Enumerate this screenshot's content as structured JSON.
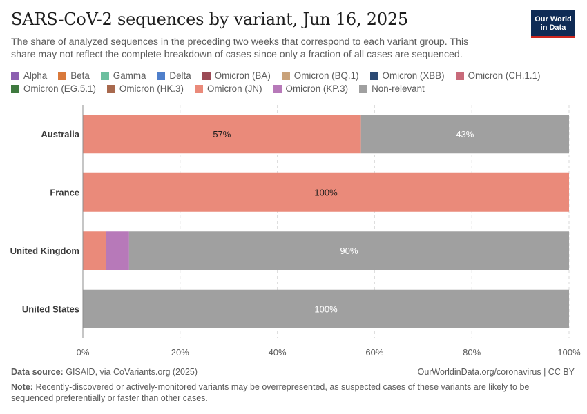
{
  "header": {
    "title": "SARS-CoV-2 sequences by variant, Jun 16, 2025",
    "subtitle": "The share of analyzed sequences in the preceding two weeks that correspond to each variant group. This share may not reflect the complete breakdown of cases since only a fraction of all cases are sequenced.",
    "logo_line1": "Our World",
    "logo_line2": "in Data"
  },
  "legend": [
    {
      "label": "Alpha",
      "color": "#8c5fb0"
    },
    {
      "label": "Beta",
      "color": "#d9793b"
    },
    {
      "label": "Gamma",
      "color": "#6cbf9f"
    },
    {
      "label": "Delta",
      "color": "#4f7fcb"
    },
    {
      "label": "Omicron (BA)",
      "color": "#9b4a55"
    },
    {
      "label": "Omicron (BQ.1)",
      "color": "#c9a27a"
    },
    {
      "label": "Omicron (XBB)",
      "color": "#2c4a74"
    },
    {
      "label": "Omicron (CH.1.1)",
      "color": "#c86a7a"
    },
    {
      "label": "Omicron (EG.5.1)",
      "color": "#3f7a3f"
    },
    {
      "label": "Omicron (HK.3)",
      "color": "#a8694e"
    },
    {
      "label": "Omicron (JN)",
      "color": "#ea8a7a"
    },
    {
      "label": "Omicron (KP.3)",
      "color": "#b779b9"
    },
    {
      "label": "Non-relevant",
      "color": "#a0a0a0"
    }
  ],
  "chart_data": {
    "type": "bar",
    "orientation": "horizontal",
    "stacked": true,
    "title": "SARS-CoV-2 sequences by variant, Jun 16, 2025",
    "categories": [
      "Australia",
      "France",
      "United Kingdom",
      "United States"
    ],
    "series": [
      {
        "name": "Omicron (JN)",
        "color": "#ea8a7a",
        "values": [
          57.2,
          100,
          4.8,
          0
        ]
      },
      {
        "name": "Omicron (KP.3)",
        "color": "#b779b9",
        "values": [
          0,
          0,
          4.7,
          0
        ]
      },
      {
        "name": "Non-relevant",
        "color": "#a0a0a0",
        "values": [
          42.8,
          0,
          90.5,
          100
        ]
      }
    ],
    "data_labels": [
      {
        "category": "Australia",
        "series": "Omicron (JN)",
        "text": "57%",
        "color": "#1d1d1d"
      },
      {
        "category": "Australia",
        "series": "Non-relevant",
        "text": "43%",
        "color": "#ffffff"
      },
      {
        "category": "France",
        "series": "Omicron (JN)",
        "text": "100%",
        "color": "#1d1d1d"
      },
      {
        "category": "United Kingdom",
        "series": "Non-relevant",
        "text": "90%",
        "color": "#ffffff"
      },
      {
        "category": "United States",
        "series": "Non-relevant",
        "text": "100%",
        "color": "#ffffff"
      }
    ],
    "x_ticks": [
      {
        "value": 0,
        "label": "0%"
      },
      {
        "value": 20,
        "label": "20%"
      },
      {
        "value": 40,
        "label": "40%"
      },
      {
        "value": 60,
        "label": "60%"
      },
      {
        "value": 80,
        "label": "80%"
      },
      {
        "value": 100,
        "label": "100%"
      }
    ],
    "xlim": [
      0,
      100
    ],
    "grid": true
  },
  "footer": {
    "source_label": "Data source:",
    "source_text": "GISAID, via CoVariants.org (2025)",
    "url": "OurWorldinData.org/coronavirus | CC BY",
    "note_label": "Note:",
    "note_text": "Recently-discovered or actively-monitored variants may be overrepresented, as suspected cases of these variants are likely to be sequenced preferentially or faster than other cases."
  }
}
